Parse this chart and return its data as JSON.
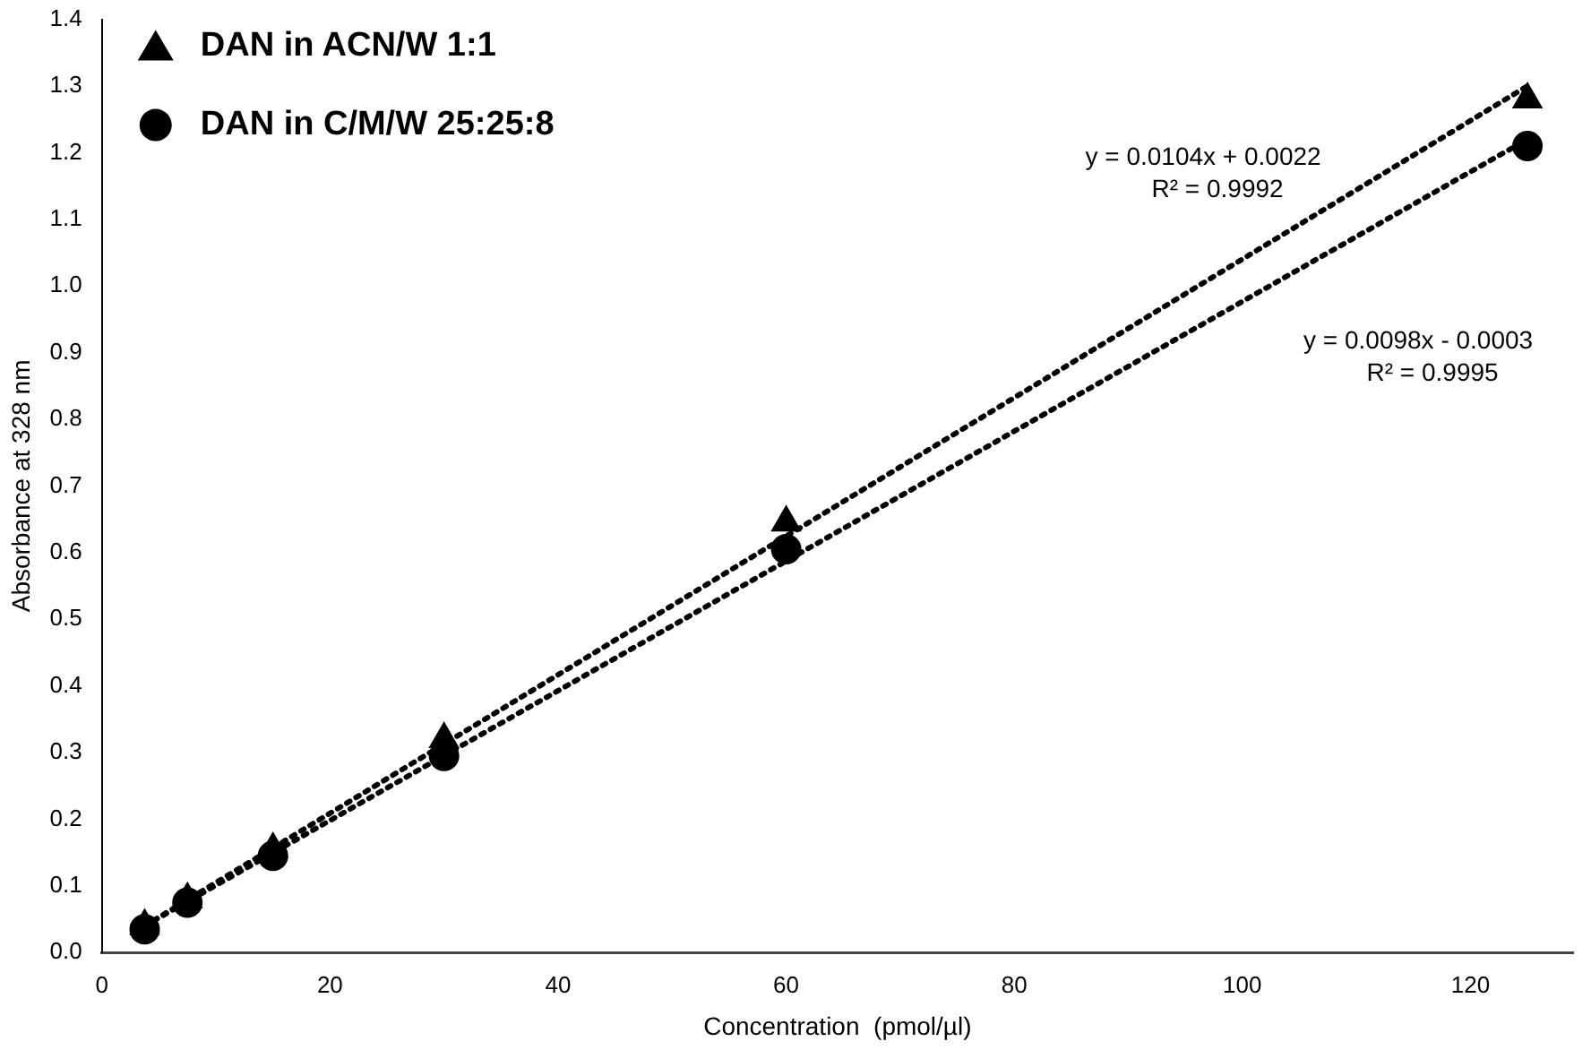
{
  "chart_data": {
    "type": "scatter",
    "xlabel": "Concentration  (pmol/µl)",
    "ylabel": "Absorbance at 328 nm",
    "xlim": [
      0,
      129
    ],
    "xticks": [
      0,
      20,
      40,
      60,
      80,
      100,
      120
    ],
    "ylim": [
      0,
      1.4
    ],
    "yticks": [
      {
        "value": 0,
        "label": "0.0"
      },
      0.1,
      0.2,
      0.3,
      0.4,
      0.5,
      0.6,
      0.7,
      0.8,
      0.9,
      {
        "value": 1,
        "label": "1.0"
      },
      1.1,
      1.2,
      1.3,
      1.4
    ],
    "grid": false,
    "legend": "top left",
    "series": [
      {
        "name": "DAN in ACN/W 1:1",
        "color": "#000000",
        "marker": "triangle",
        "x": [
          3.75,
          7.5,
          15,
          30,
          60,
          125
        ],
        "values": [
          0.04,
          0.08,
          0.155,
          0.32,
          0.645,
          1.28
        ]
      },
      {
        "name": "DAN in C/M/W 25:25:8",
        "color": "#000000",
        "marker": "circle",
        "x": [
          3.75,
          7.5,
          15,
          30,
          60,
          125
        ],
        "values": [
          0.035,
          0.075,
          0.145,
          0.295,
          0.605,
          1.21
        ]
      },
      {
        "type": "line",
        "color": "#000000",
        "line_style": "dotted",
        "marker": "none",
        "x": [
          3.75,
          125
        ],
        "values": [
          0.04,
          1.3
        ]
      },
      {
        "type": "line",
        "color": "#000000",
        "line_style": "dotted",
        "marker": "none",
        "x": [
          3.75,
          125
        ],
        "values": [
          0.04,
          1.22
        ]
      }
    ],
    "annotations": [
      "y = 0.0104x + 0.0022",
      "R² = 0.9992",
      "y = 0.0098x - 0.0003",
      "R² = 0.9995"
    ]
  }
}
